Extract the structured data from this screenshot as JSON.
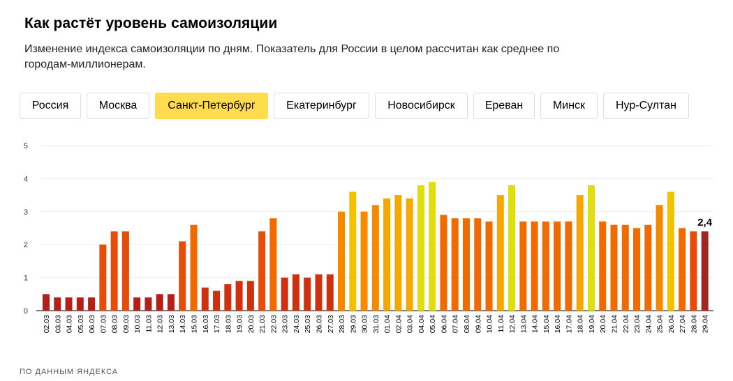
{
  "title": "Как растёт уровень самоизоляции",
  "subtitle": "Изменение индекса самоизоляции по дням. Показатель для России в целом рассчитан как среднее по городам-миллионерам.",
  "tabs": [
    {
      "label": "Россия",
      "active": false
    },
    {
      "label": "Москва",
      "active": false
    },
    {
      "label": "Санкт-Петербург",
      "active": true
    },
    {
      "label": "Екатеринбург",
      "active": false
    },
    {
      "label": "Новосибирск",
      "active": false
    },
    {
      "label": "Ереван",
      "active": false
    },
    {
      "label": "Минск",
      "active": false
    },
    {
      "label": "Нур-Султан",
      "active": false
    }
  ],
  "source": "ПО ДАННЫМ ЯНДЕКСА",
  "colors": {
    "tab_active": "#ffdb4d",
    "grid": "#eeeeee",
    "axis": "#000000",
    "scale": [
      "#b3201a",
      "#cf3010",
      "#e74d0a",
      "#f06a00",
      "#f58a00",
      "#f7a800",
      "#f2c200",
      "#dede10"
    ]
  },
  "chart_data": {
    "type": "bar",
    "ylim": [
      0,
      5
    ],
    "yticks": [
      "0",
      "1",
      "2",
      "3",
      "4",
      "5"
    ],
    "grid": true,
    "categories": [
      "02.03",
      "03.03",
      "04.03",
      "05.03",
      "06.03",
      "07.03",
      "08.03",
      "09.03",
      "10.03",
      "11.03",
      "12.03",
      "13.03",
      "14.03",
      "15.03",
      "16.03",
      "17.03",
      "18.03",
      "19.03",
      "20.03",
      "21.03",
      "22.03",
      "23.03",
      "24.03",
      "25.03",
      "26.03",
      "27.03",
      "28.03",
      "29.03",
      "30.03",
      "31.03",
      "01.04",
      "02.04",
      "03.04",
      "04.04",
      "05.04",
      "06.04",
      "07.04",
      "08.04",
      "09.04",
      "10.04",
      "11.04",
      "12.04",
      "13.04",
      "14.04",
      "15.04",
      "16.04",
      "17.04",
      "18.04",
      "19.04",
      "20.04",
      "21.04",
      "22.04",
      "23.04",
      "24.04",
      "25.04",
      "26.04",
      "27.04",
      "28.04",
      "29.04"
    ],
    "values": [
      0.5,
      0.4,
      0.4,
      0.4,
      0.4,
      2.0,
      2.4,
      2.4,
      0.4,
      0.4,
      0.5,
      0.5,
      2.1,
      2.6,
      0.7,
      0.6,
      0.8,
      0.9,
      0.9,
      2.4,
      2.8,
      1.0,
      1.1,
      1.0,
      1.1,
      1.1,
      3.0,
      3.6,
      3.0,
      3.2,
      3.4,
      3.5,
      3.4,
      3.8,
      3.9,
      2.9,
      2.8,
      2.8,
      2.8,
      2.7,
      3.5,
      3.8,
      2.7,
      2.7,
      2.7,
      2.7,
      2.7,
      3.5,
      3.8,
      2.7,
      2.6,
      2.6,
      2.5,
      2.6,
      3.2,
      3.6,
      2.5,
      2.4,
      2.4
    ],
    "last_value_label": "2,4",
    "last_bar_color": "#a02525"
  }
}
